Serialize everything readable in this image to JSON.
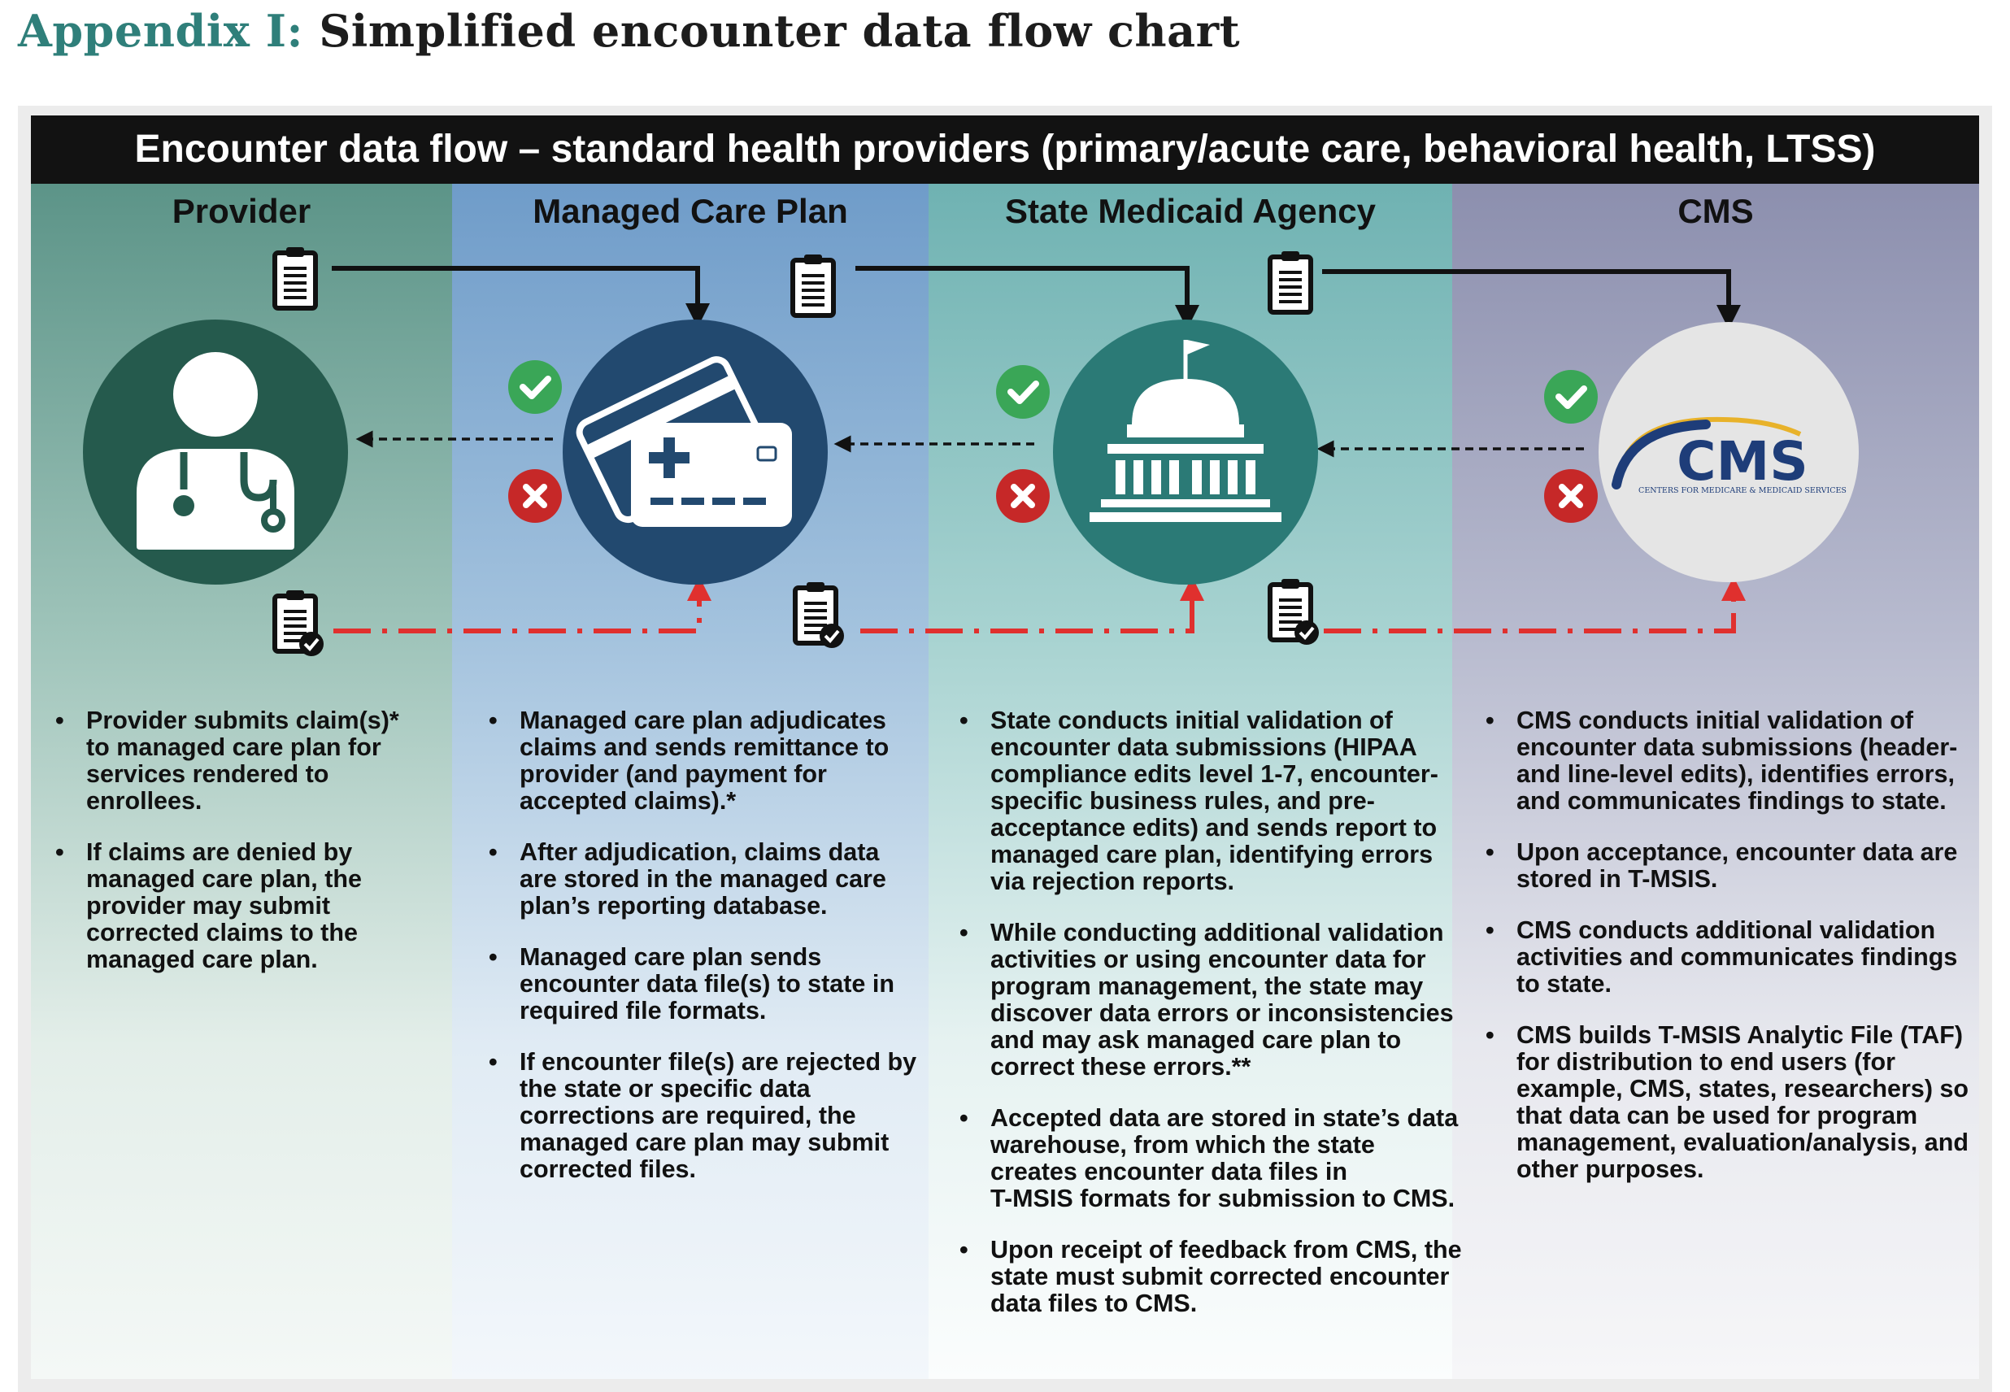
{
  "title": {
    "lead": "Appendix I:",
    "rest": "Simplified encounter data flow chart"
  },
  "banner": "Encounter data flow – standard health providers (primary/acute care, behavioral health, LTSS)",
  "columns": [
    {
      "heading": "Provider",
      "icon": "doctor-icon"
    },
    {
      "heading": "Managed Care Plan",
      "icon": "insurance-card-icon"
    },
    {
      "heading": "State Medicaid Agency",
      "icon": "capitol-building-icon"
    },
    {
      "heading": "CMS",
      "icon": "cms-logo"
    }
  ],
  "cms_logo": {
    "wordmark": "CMS",
    "subtitle": "CENTERS FOR MEDICARE & MEDICAID SERVICES"
  },
  "legend": {
    "submission": "solid black arrow",
    "feedback": "dashed black arrow",
    "corrections": "red dash-dot arrow"
  },
  "colors": {
    "provider_circle": "#255a4d",
    "mcp_circle": "#22496f",
    "state_circle": "#2b7a76",
    "cms_circle": "#e5e5e5",
    "check": "#3aa657",
    "reject": "#c62828",
    "correction_line": "#e0302e",
    "banner": "#121212",
    "title_accent": "#2f7f7a"
  },
  "bullets": {
    "provider": [
      [
        "Provider submits claim(s)*",
        "to managed care plan for",
        "services rendered to",
        "enrollees."
      ],
      [
        "If claims are denied by",
        "managed care plan, the",
        "provider may submit",
        "corrected claims to the",
        "managed care plan."
      ]
    ],
    "mcp": [
      [
        "Managed care plan adjudicates",
        "claims and sends remittance to",
        "provider (and payment for",
        "accepted claims).*"
      ],
      [
        "After adjudication, claims data",
        "are stored in the managed care",
        "plan’s reporting database."
      ],
      [
        "Managed care plan sends",
        "encounter data file(s) to state in",
        "required file formats."
      ],
      [
        "If encounter file(s) are rejected by",
        "the state or specific data",
        "corrections are required, the",
        "managed care plan may submit",
        "corrected files."
      ]
    ],
    "state": [
      [
        "State conducts initial validation of",
        "encounter data submissions (HIPAA",
        "compliance edits level 1-7, encounter-",
        "specific business rules, and pre-",
        "acceptance edits) and sends report to",
        "managed care plan, identifying errors",
        "via rejection reports."
      ],
      [
        "While conducting additional validation",
        "activities or using encounter data for",
        "program management, the state may",
        "discover data errors or inconsistencies",
        "and may ask managed care plan to",
        "correct these errors.**"
      ],
      [
        "Accepted data are stored in state’s data",
        "warehouse, from which the state",
        "creates encounter data files in",
        "T-MSIS formats for submission to CMS."
      ],
      [
        "Upon receipt of feedback from CMS, the",
        "state must submit corrected encounter",
        "data files to CMS."
      ]
    ],
    "cms": [
      [
        "CMS conducts initial validation of",
        "encounter data submissions (header-",
        "and line-level edits), identifies errors,",
        "and communicates findings to state."
      ],
      [
        "Upon acceptance, encounter data are",
        "stored in T-MSIS."
      ],
      [
        "CMS conducts additional validation",
        "activities and communicates findings",
        "to state."
      ],
      [
        "CMS builds T-MSIS Analytic File (TAF)",
        "for distribution to end users (for",
        "example, CMS, states, researchers) so",
        "that data can be used for program",
        "management, evaluation/analysis, and",
        "other purposes."
      ]
    ]
  }
}
